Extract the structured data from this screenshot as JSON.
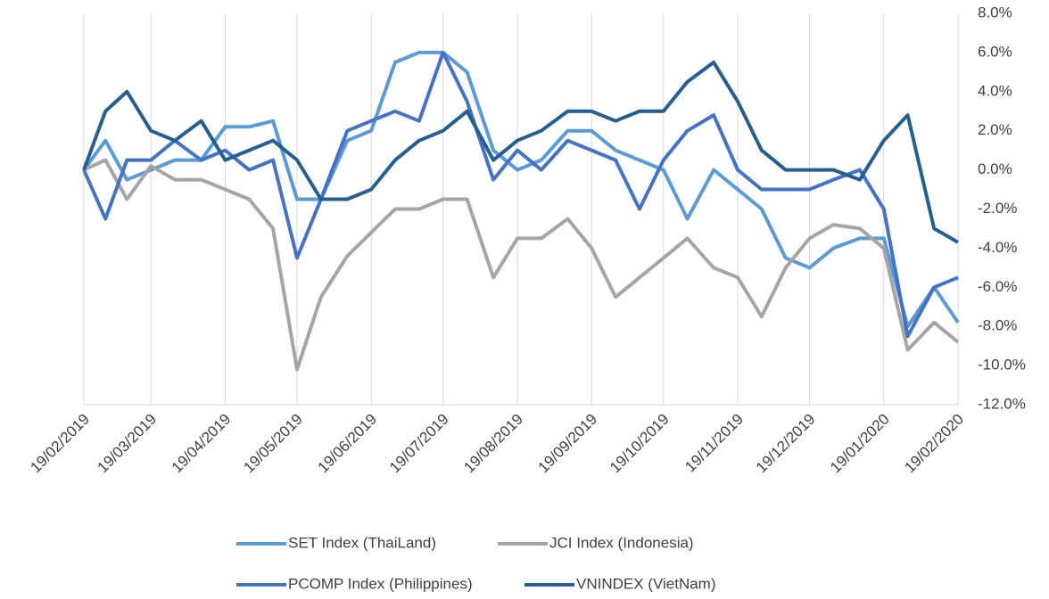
{
  "chart_data": {
    "type": "line",
    "x": [
      "2019-02-19",
      "2019-02-28",
      "2019-03-09",
      "2019-03-19",
      "2019-03-29",
      "2019-04-09",
      "2019-04-19",
      "2019-04-29",
      "2019-05-09",
      "2019-05-19",
      "2019-05-29",
      "2019-06-09",
      "2019-06-19",
      "2019-06-29",
      "2019-07-09",
      "2019-07-19",
      "2019-07-29",
      "2019-08-09",
      "2019-08-19",
      "2019-08-29",
      "2019-09-09",
      "2019-09-19",
      "2019-09-29",
      "2019-10-09",
      "2019-10-19",
      "2019-10-29",
      "2019-11-09",
      "2019-11-19",
      "2019-11-29",
      "2019-12-09",
      "2019-12-19",
      "2019-12-29",
      "2020-01-09",
      "2020-01-19",
      "2020-01-29",
      "2020-02-09",
      "2020-02-19"
    ],
    "xlim": [
      "2019-02-19",
      "2020-02-19"
    ],
    "xticks": [
      {
        "value": "2019-02-19",
        "label": "19/02/2019"
      },
      {
        "value": "2019-03-19",
        "label": "19/03/2019"
      },
      {
        "value": "2019-04-19",
        "label": "19/04/2019"
      },
      {
        "value": "2019-05-19",
        "label": "19/05/2019"
      },
      {
        "value": "2019-06-19",
        "label": "19/06/2019"
      },
      {
        "value": "2019-07-19",
        "label": "19/07/2019"
      },
      {
        "value": "2019-08-19",
        "label": "19/08/2019"
      },
      {
        "value": "2019-09-19",
        "label": "19/09/2019"
      },
      {
        "value": "2019-10-19",
        "label": "19/10/2019"
      },
      {
        "value": "2019-11-19",
        "label": "19/11/2019"
      },
      {
        "value": "2019-12-19",
        "label": "19/12/2019"
      },
      {
        "value": "2020-01-19",
        "label": "19/01/2020"
      },
      {
        "value": "2020-02-19",
        "label": "19/02/2020"
      }
    ],
    "ylim": [
      -12,
      8
    ],
    "yticks": [
      {
        "value": -12,
        "label": "-12.0%"
      },
      {
        "value": -10,
        "label": "-10.0%"
      },
      {
        "value": -8,
        "label": "-8.0%"
      },
      {
        "value": -6,
        "label": "-6.0%"
      },
      {
        "value": -4,
        "label": "-4.0%"
      },
      {
        "value": -2,
        "label": "-2.0%"
      },
      {
        "value": 0,
        "label": "0.0%"
      },
      {
        "value": 2,
        "label": "2.0%"
      },
      {
        "value": 4,
        "label": "4.0%"
      },
      {
        "value": 6,
        "label": "6.0%"
      },
      {
        "value": 8,
        "label": "8.0%"
      }
    ],
    "grid": "x",
    "series": [
      {
        "name": "SET Index (ThaiLand)",
        "color": "#5b9bd5",
        "values": [
          0,
          1.5,
          -0.5,
          0,
          0.5,
          0.5,
          2.2,
          2.2,
          2.5,
          -1.5,
          -1.5,
          1.5,
          2.0,
          5.5,
          6.0,
          6.0,
          5.0,
          1.0,
          0,
          0.5,
          2.0,
          2.0,
          1.0,
          0.5,
          0,
          -2.5,
          0,
          -1.0,
          -2.0,
          -4.5,
          -5,
          -4,
          -3.5,
          -3.5,
          -8,
          -6,
          -7.8
        ]
      },
      {
        "name": "JCI Index (Indonesia)",
        "color": "#a5a5a5",
        "values": [
          0,
          0.5,
          -1.5,
          0.2,
          -0.5,
          -0.5,
          -1,
          -1.5,
          -3,
          -10.2,
          -6.5,
          -4.4,
          -3.2,
          -2,
          -2,
          -1.5,
          -1.5,
          -5.5,
          -3.5,
          -3.5,
          -2.5,
          -4.0,
          -6.5,
          -5.5,
          -4.5,
          -3.5,
          -5,
          -5.5,
          -7.5,
          -5,
          -3.5,
          -2.8,
          -3,
          -4,
          -9.2,
          -7.8,
          -8.8
        ]
      },
      {
        "name": "PCOMP Index (Philippines)",
        "color": "#4472c4",
        "values": [
          0,
          -2.5,
          0.5,
          0.5,
          1.5,
          0.5,
          1.0,
          0,
          0.5,
          -4.5,
          -1.5,
          2.0,
          2.5,
          3.0,
          2.5,
          6.0,
          3.5,
          -0.5,
          1.0,
          0,
          1.5,
          1.0,
          0.5,
          -2.0,
          0.5,
          2.0,
          2.8,
          0,
          -1.0,
          -1.0,
          -1.0,
          -0.5,
          0,
          -2,
          -8.5,
          -6.0,
          -5.5
        ]
      },
      {
        "name": "VNINDEX (VietNam)",
        "color": "#255e91",
        "values": [
          0,
          3.0,
          4.0,
          2.0,
          1.5,
          2.5,
          0.5,
          1.0,
          1.5,
          0.5,
          -1.5,
          -1.5,
          -1.0,
          0.5,
          1.5,
          2.0,
          3.0,
          0.5,
          1.5,
          2.0,
          3.0,
          3.0,
          2.5,
          3.0,
          3.0,
          4.5,
          5.5,
          3.5,
          1.0,
          0,
          0,
          0,
          -0.5,
          1.5,
          2.8,
          -3.0,
          -3.7
        ]
      }
    ]
  }
}
